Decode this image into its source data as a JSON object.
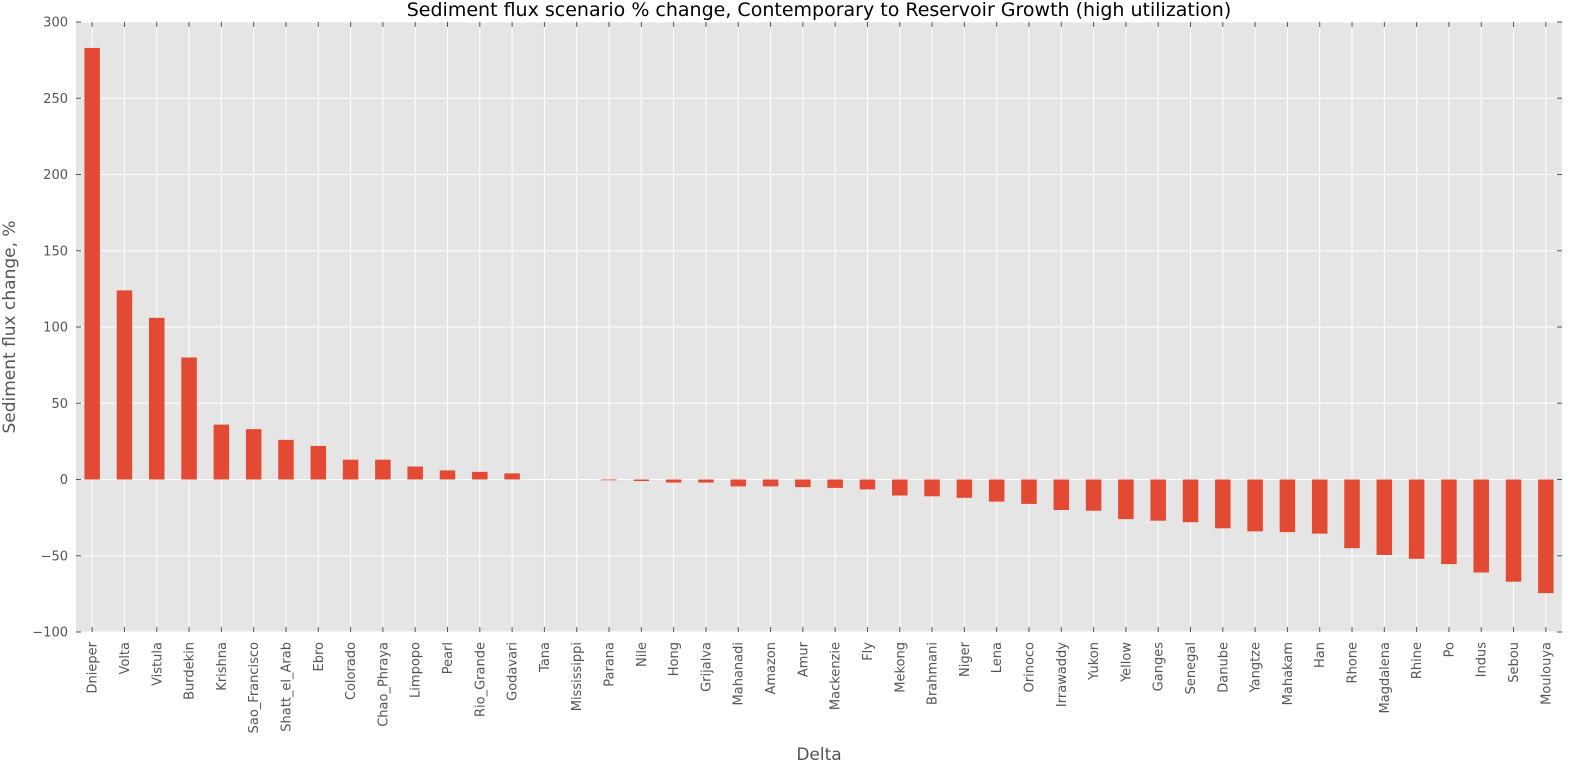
{
  "chart_data": {
    "type": "bar",
    "title": "Sediment flux scenario % change, Contemporary to Reservoir Growth (high utilization)",
    "xlabel": "Delta",
    "ylabel": "Sediment flux change, %",
    "ylim": [
      -100,
      300
    ],
    "yticks": [
      "300",
      "250",
      "200",
      "150",
      "100",
      "50",
      "0",
      "−50",
      "−100"
    ],
    "grid": true,
    "categories": [
      "Dnieper",
      "Volta",
      "Vistula",
      "Burdekin",
      "Krishna",
      "Sao_Francisco",
      "Shatt_el_Arab",
      "Ebro",
      "Colorado",
      "Chao_Phraya",
      "Limpopo",
      "Pearl",
      "Rio_Grande",
      "Godavari",
      "Tana",
      "Mississippi",
      "Parana",
      "Nile",
      "Hong",
      "Grijalva",
      "Mahanadi",
      "Amazon",
      "Amur",
      "Mackenzie",
      "Fly",
      "Mekong",
      "Brahmani",
      "Niger",
      "Lena",
      "Orinoco",
      "Irrawaddy",
      "Yukon",
      "Yellow",
      "Ganges",
      "Senegal",
      "Danube",
      "Yangtze",
      "Mahakam",
      "Han",
      "Rhone",
      "Magdalena",
      "Rhine",
      "Po",
      "Indus",
      "Sebou",
      "Moulouya"
    ],
    "values": [
      283,
      124,
      106,
      80,
      36,
      33,
      26,
      22,
      13,
      13,
      8.5,
      6,
      5,
      4,
      0,
      0,
      -0.5,
      -1,
      -2,
      -2,
      -4.5,
      -4.5,
      -5,
      -5.5,
      -6.5,
      -10.5,
      -11,
      -12,
      -14.5,
      -16,
      -20,
      -20.5,
      -26,
      -27,
      -28,
      -32,
      -34,
      -34.5,
      -35.5,
      -45,
      -49.5,
      -52,
      -55.5,
      -61,
      -67,
      -74.5
    ],
    "colors": {
      "bar": "#e24a33",
      "background": "#e5e5e5",
      "grid": "#ffffff",
      "text": "#555555"
    }
  }
}
